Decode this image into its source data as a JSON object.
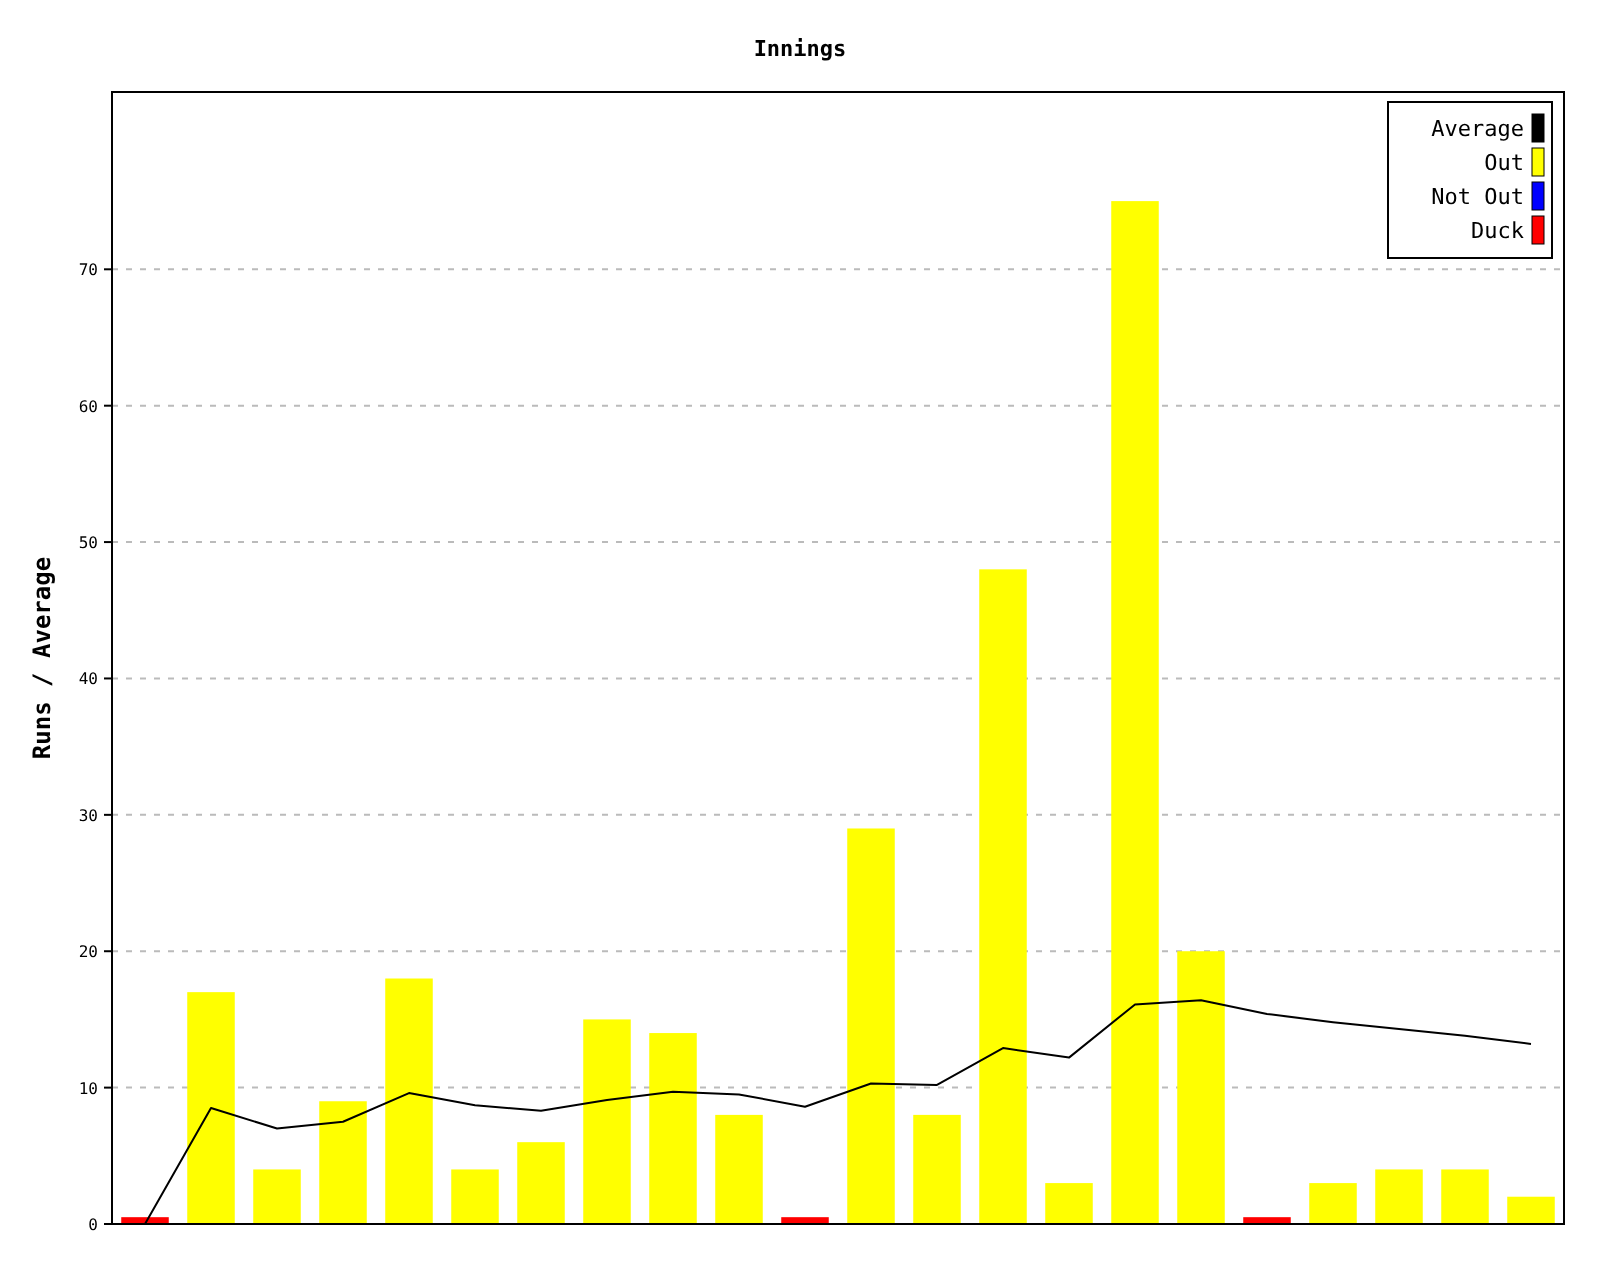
{
  "chart_data": {
    "type": "bar",
    "title": "Innings",
    "ylabel": "Runs / Average",
    "categories": [
      null,
      null,
      null,
      null,
      null,
      null,
      null,
      null,
      null,
      null,
      null,
      null,
      null,
      null,
      null,
      null,
      null,
      null,
      null,
      null,
      null,
      null
    ],
    "series": [
      {
        "name": "Average",
        "type": "line",
        "color": "#000000",
        "values": [
          0,
          8.5,
          7,
          7.5,
          9.6,
          8.7,
          8.3,
          9.1,
          9.7,
          9.5,
          8.6,
          10.3,
          10.2,
          12.9,
          12.2,
          16.1,
          16.4,
          15.4,
          14.8,
          14.3,
          13.8,
          13.2
        ]
      },
      {
        "name": "Out",
        "color": "#ffff00",
        "values": [
          null,
          17,
          4,
          9,
          18,
          4,
          6,
          15,
          14,
          8,
          null,
          29,
          8,
          48,
          3,
          75,
          20,
          null,
          3,
          4,
          4,
          2
        ]
      },
      {
        "name": "Not Out",
        "color": "#0000ff",
        "values": [
          null,
          null,
          null,
          null,
          null,
          null,
          null,
          null,
          null,
          null,
          null,
          null,
          null,
          null,
          null,
          null,
          null,
          null,
          null,
          null,
          null,
          null
        ]
      },
      {
        "name": "Duck",
        "color": "#ff0000",
        "values": [
          0.5,
          null,
          null,
          null,
          null,
          null,
          null,
          null,
          null,
          null,
          0.5,
          null,
          null,
          null,
          null,
          null,
          null,
          0.5,
          null,
          null,
          null,
          null
        ]
      }
    ],
    "ylim": [
      0,
      83
    ],
    "yticks": [
      0,
      10,
      20,
      30,
      40,
      50,
      60,
      70
    ],
    "grid": "y",
    "legend": "top right",
    "tick_labels": "y"
  }
}
